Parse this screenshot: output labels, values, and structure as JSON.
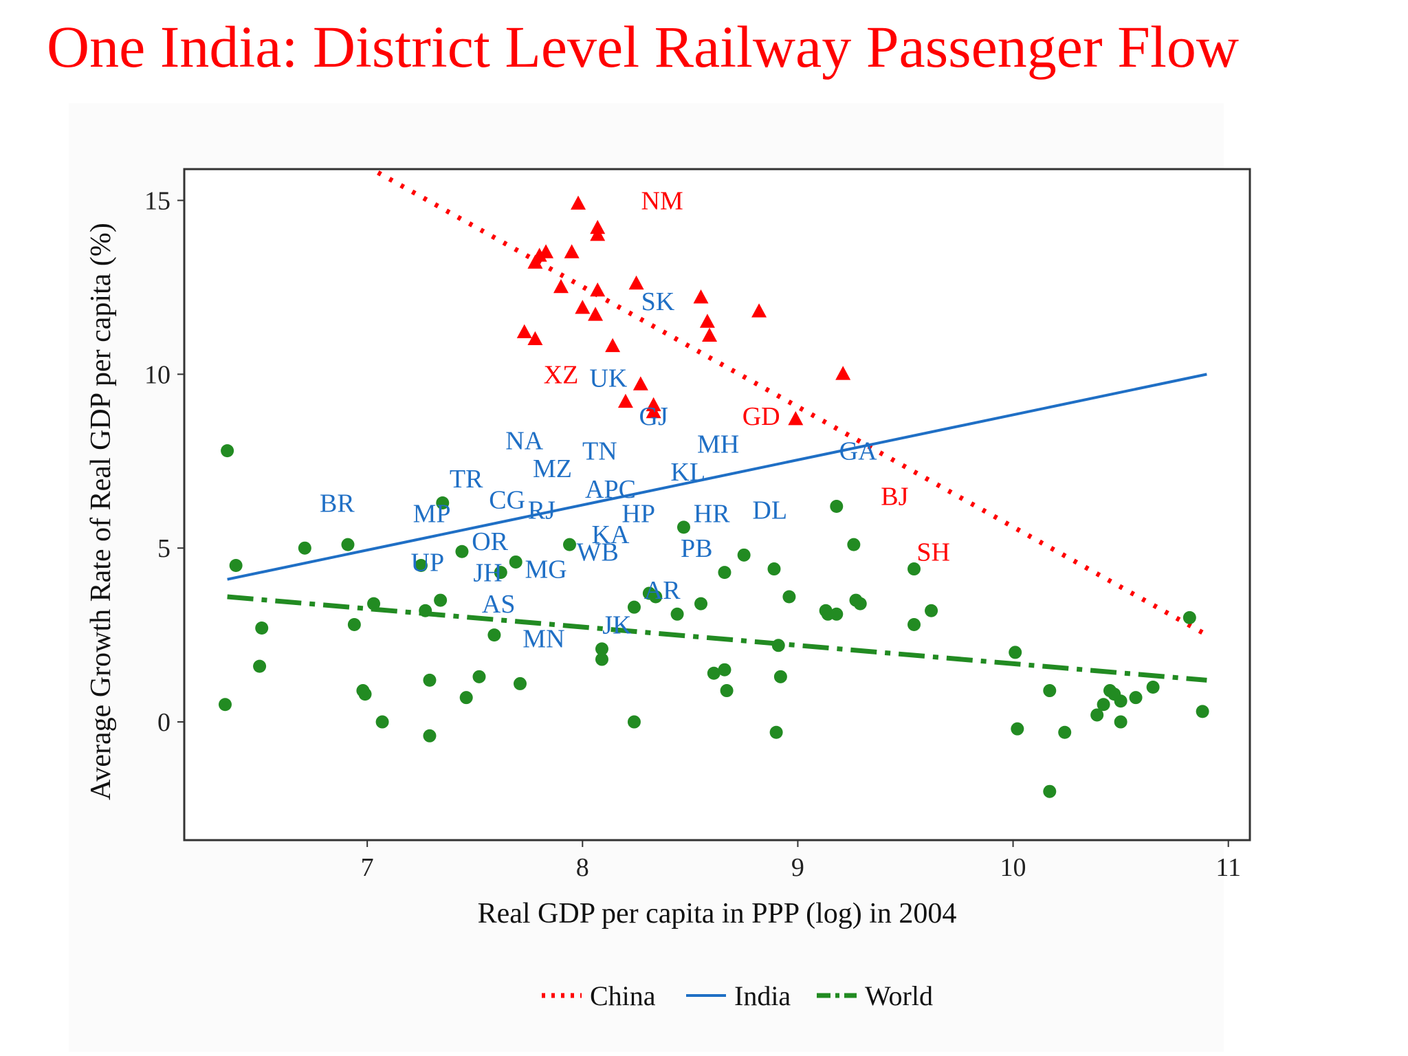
{
  "slide": {
    "title": "One India: District Level Railway Passenger Flow"
  },
  "colors": {
    "title": "#ff0000",
    "china": "#ff0000",
    "india": "#1f6fc5",
    "world": "#228b22"
  },
  "chart_data": {
    "type": "scatter",
    "title": "",
    "xlabel": "Real GDP per capita in PPP (log) in 2004",
    "ylabel": "Average Growth Rate of Real GDP per capita (%)",
    "xlim": [
      6.15,
      11.1
    ],
    "ylim": [
      -3.4,
      15.9
    ],
    "xticks": [
      7,
      8,
      9,
      10,
      11
    ],
    "yticks": [
      0,
      5,
      10,
      15
    ],
    "grid": false,
    "legend_position": "bottom",
    "legend": [
      {
        "name": "China",
        "style": "dotted",
        "color": "#ff0000"
      },
      {
        "name": "India",
        "style": "solid",
        "color": "#1f6fc5"
      },
      {
        "name": "World",
        "style": "dashdot",
        "color": "#228b22"
      }
    ],
    "fit_lines": [
      {
        "name": "China",
        "x": [
          7.05,
          10.9
        ],
        "y": [
          15.8,
          2.5
        ]
      },
      {
        "name": "India",
        "x": [
          6.35,
          10.9
        ],
        "y": [
          4.1,
          10.0
        ]
      },
      {
        "name": "World",
        "x": [
          6.35,
          10.9
        ],
        "y": [
          3.6,
          1.2
        ]
      }
    ],
    "series": [
      {
        "name": "China",
        "marker": "triangle",
        "points": [
          [
            7.98,
            14.9
          ],
          [
            8.07,
            14.0
          ],
          [
            8.07,
            14.2
          ],
          [
            7.83,
            13.5
          ],
          [
            7.95,
            13.5
          ],
          [
            7.8,
            13.4
          ],
          [
            7.78,
            13.2
          ],
          [
            8.25,
            12.6
          ],
          [
            7.9,
            12.5
          ],
          [
            8.07,
            12.4
          ],
          [
            8.55,
            12.2
          ],
          [
            8.0,
            11.9
          ],
          [
            8.06,
            11.7
          ],
          [
            8.82,
            11.8
          ],
          [
            8.58,
            11.5
          ],
          [
            8.59,
            11.1
          ],
          [
            7.73,
            11.2
          ],
          [
            7.78,
            11.0
          ],
          [
            8.14,
            10.8
          ],
          [
            9.21,
            10.0
          ],
          [
            8.27,
            9.7
          ],
          [
            8.2,
            9.2
          ],
          [
            8.33,
            9.1
          ],
          [
            8.33,
            8.9
          ],
          [
            8.99,
            8.7
          ]
        ]
      },
      {
        "name": "World",
        "marker": "circle",
        "points": [
          [
            6.35,
            7.8
          ],
          [
            6.39,
            4.5
          ],
          [
            6.51,
            2.7
          ],
          [
            6.5,
            1.6
          ],
          [
            6.34,
            0.5
          ],
          [
            6.71,
            5.0
          ],
          [
            6.91,
            5.1
          ],
          [
            6.94,
            2.8
          ],
          [
            7.03,
            3.4
          ],
          [
            6.98,
            0.9
          ],
          [
            6.99,
            0.8
          ],
          [
            7.07,
            0.0
          ],
          [
            7.25,
            4.5
          ],
          [
            7.35,
            6.3
          ],
          [
            7.44,
            4.9
          ],
          [
            7.34,
            3.5
          ],
          [
            7.27,
            3.2
          ],
          [
            7.29,
            1.2
          ],
          [
            7.29,
            -0.4
          ],
          [
            7.46,
            0.7
          ],
          [
            7.52,
            1.3
          ],
          [
            7.59,
            2.5
          ],
          [
            7.62,
            4.3
          ],
          [
            7.69,
            4.6
          ],
          [
            7.71,
            1.1
          ],
          [
            7.94,
            5.1
          ],
          [
            8.09,
            2.1
          ],
          [
            8.09,
            1.8
          ],
          [
            8.24,
            3.3
          ],
          [
            8.24,
            0.0
          ],
          [
            8.31,
            3.7
          ],
          [
            8.34,
            3.6
          ],
          [
            8.44,
            3.1
          ],
          [
            8.47,
            5.6
          ],
          [
            8.55,
            3.4
          ],
          [
            8.61,
            1.4
          ],
          [
            8.66,
            1.5
          ],
          [
            8.66,
            4.3
          ],
          [
            8.67,
            0.9
          ],
          [
            8.75,
            4.8
          ],
          [
            8.89,
            4.4
          ],
          [
            8.91,
            2.2
          ],
          [
            8.92,
            1.3
          ],
          [
            8.96,
            3.6
          ],
          [
            8.9,
            -0.3
          ],
          [
            9.13,
            3.2
          ],
          [
            9.14,
            3.1
          ],
          [
            9.18,
            3.1
          ],
          [
            9.18,
            6.2
          ],
          [
            9.26,
            5.1
          ],
          [
            9.27,
            3.5
          ],
          [
            9.29,
            3.4
          ],
          [
            9.54,
            2.8
          ],
          [
            9.54,
            4.4
          ],
          [
            9.62,
            3.2
          ],
          [
            10.01,
            2.0
          ],
          [
            10.02,
            -0.2
          ],
          [
            10.17,
            0.9
          ],
          [
            10.17,
            -2.0
          ],
          [
            10.24,
            -0.3
          ],
          [
            10.39,
            0.2
          ],
          [
            10.42,
            0.5
          ],
          [
            10.45,
            0.9
          ],
          [
            10.47,
            0.8
          ],
          [
            10.5,
            0.6
          ],
          [
            10.5,
            0.0
          ],
          [
            10.57,
            0.7
          ],
          [
            10.65,
            1.0
          ],
          [
            10.82,
            3.0
          ],
          [
            10.88,
            0.3
          ]
        ]
      }
    ],
    "labels": [
      {
        "text": "NM",
        "series": "China",
        "x": 8.37,
        "y": 15.0
      },
      {
        "text": "SK",
        "series": "India",
        "x": 8.35,
        "y": 12.1
      },
      {
        "text": "XZ",
        "series": "China",
        "x": 7.9,
        "y": 10.0
      },
      {
        "text": "UK",
        "series": "India",
        "x": 8.12,
        "y": 9.9
      },
      {
        "text": "GJ",
        "series": "India",
        "x": 8.33,
        "y": 8.8
      },
      {
        "text": "GD",
        "series": "China",
        "x": 8.83,
        "y": 8.8
      },
      {
        "text": "NA",
        "series": "India",
        "x": 7.73,
        "y": 8.1
      },
      {
        "text": "TN",
        "series": "India",
        "x": 8.08,
        "y": 7.8
      },
      {
        "text": "MH",
        "series": "India",
        "x": 8.63,
        "y": 8.0
      },
      {
        "text": "MZ",
        "series": "India",
        "x": 7.86,
        "y": 7.3
      },
      {
        "text": "GA",
        "series": "India",
        "x": 9.28,
        "y": 7.8
      },
      {
        "text": "TR",
        "series": "India",
        "x": 7.46,
        "y": 7.0
      },
      {
        "text": "KL",
        "series": "India",
        "x": 8.49,
        "y": 7.2
      },
      {
        "text": "APC",
        "series": "India",
        "x": 8.13,
        "y": 6.7
      },
      {
        "text": "BJ",
        "series": "China",
        "x": 9.45,
        "y": 6.5
      },
      {
        "text": "BR",
        "series": "India",
        "x": 6.86,
        "y": 6.3
      },
      {
        "text": "CG",
        "series": "India",
        "x": 7.65,
        "y": 6.4
      },
      {
        "text": "RJ",
        "series": "India",
        "x": 7.81,
        "y": 6.1
      },
      {
        "text": "MP",
        "series": "India",
        "x": 7.3,
        "y": 6.0
      },
      {
        "text": "HP",
        "series": "India",
        "x": 8.26,
        "y": 6.0
      },
      {
        "text": "HR",
        "series": "India",
        "x": 8.6,
        "y": 6.0
      },
      {
        "text": "DL",
        "series": "India",
        "x": 8.87,
        "y": 6.1
      },
      {
        "text": "KA",
        "series": "India",
        "x": 8.13,
        "y": 5.4
      },
      {
        "text": "OR",
        "series": "India",
        "x": 7.57,
        "y": 5.2
      },
      {
        "text": "WB",
        "series": "India",
        "x": 8.07,
        "y": 4.9
      },
      {
        "text": "PB",
        "series": "India",
        "x": 8.53,
        "y": 5.0
      },
      {
        "text": "SH",
        "series": "China",
        "x": 9.63,
        "y": 4.9
      },
      {
        "text": "UP",
        "series": "India",
        "x": 7.28,
        "y": 4.6
      },
      {
        "text": "JH",
        "series": "India",
        "x": 7.56,
        "y": 4.3
      },
      {
        "text": "MG",
        "series": "India",
        "x": 7.83,
        "y": 4.4
      },
      {
        "text": "AR",
        "series": "India",
        "x": 8.37,
        "y": 3.8
      },
      {
        "text": "AS",
        "series": "India",
        "x": 7.61,
        "y": 3.4
      },
      {
        "text": "JK",
        "series": "India",
        "x": 8.16,
        "y": 2.8
      },
      {
        "text": "MN",
        "series": "India",
        "x": 7.82,
        "y": 2.4
      }
    ]
  }
}
